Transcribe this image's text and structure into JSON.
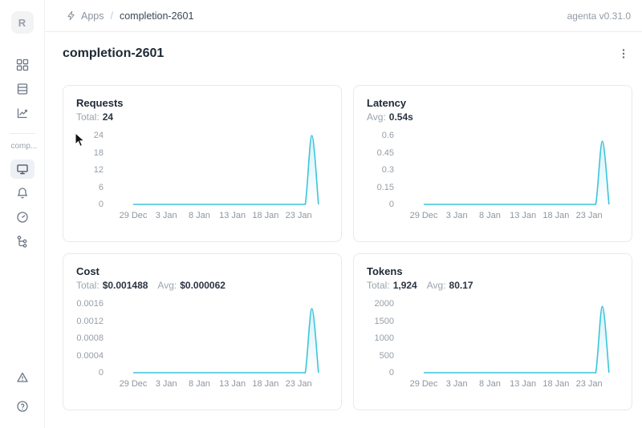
{
  "header": {
    "breadcrumb_app": "Apps",
    "breadcrumb_sep": "/",
    "breadcrumb_current": "completion-2601",
    "version": "agenta v0.31.0"
  },
  "sidebar": {
    "logo_letter": "R",
    "workspace_label": "comp...",
    "nav_icons": [
      "apps-grid-icon",
      "table-icon",
      "chart-trend-icon"
    ],
    "app_icons": [
      "monitor-icon",
      "bell-icon",
      "gauge-icon",
      "trace-tree-icon"
    ],
    "bottom_icons": [
      "alert-triangle-icon",
      "help-circle-icon"
    ],
    "selected_icon": "monitor-icon"
  },
  "page": {
    "title": "completion-2601"
  },
  "theme": {
    "line_color": "#3bc4da",
    "fill_top": "rgba(59,196,218,0.22)",
    "fill_bottom": "rgba(59,196,218,0)"
  },
  "chart_data": [
    {
      "type": "area",
      "title": "Requests",
      "stats": [
        {
          "label": "Total:",
          "value": "24"
        }
      ],
      "y_ticks": [
        "24",
        "18",
        "12",
        "6",
        "0"
      ],
      "ylim": [
        0,
        24
      ],
      "x_ticks": [
        "29 Dec",
        "3 Jan",
        "8 Jan",
        "13 Jan",
        "18 Jan",
        "23 Jan"
      ],
      "grid": false,
      "legend": false,
      "series": [
        {
          "name": "requests",
          "values": [
            0,
            0,
            0,
            0,
            0,
            0,
            0,
            0,
            0,
            0,
            0,
            0,
            0,
            0,
            0,
            0,
            0,
            0,
            0,
            0,
            0,
            0,
            0,
            0,
            0,
            0,
            0,
            24,
            0
          ]
        }
      ],
      "peak_note": "spike of 24 requests on 25 Jan"
    },
    {
      "type": "area",
      "title": "Latency",
      "stats": [
        {
          "label": "Avg:",
          "value": "0.54s"
        }
      ],
      "y_ticks": [
        "0.6",
        "0.45",
        "0.3",
        "0.15",
        "0"
      ],
      "ylim": [
        0,
        0.6
      ],
      "x_ticks": [
        "29 Dec",
        "3 Jan",
        "8 Jan",
        "13 Jan",
        "18 Jan",
        "23 Jan"
      ],
      "grid": false,
      "legend": false,
      "series": [
        {
          "name": "latency_s",
          "values": [
            0,
            0,
            0,
            0,
            0,
            0,
            0,
            0,
            0,
            0,
            0,
            0,
            0,
            0,
            0,
            0,
            0,
            0,
            0,
            0,
            0,
            0,
            0,
            0,
            0,
            0,
            0,
            0.55,
            0
          ]
        }
      ],
      "peak_note": "spike to ~0.55s on 25 Jan"
    },
    {
      "type": "area",
      "title": "Cost",
      "stats": [
        {
          "label": "Total:",
          "value": "$0.001488"
        },
        {
          "label": "Avg:",
          "value": "$0.000062"
        }
      ],
      "y_ticks": [
        "0.0016",
        "0.0012",
        "0.0008",
        "0.0004",
        "0"
      ],
      "ylim": [
        0,
        0.0016
      ],
      "x_ticks": [
        "29 Dec",
        "3 Jan",
        "8 Jan",
        "13 Jan",
        "18 Jan",
        "23 Jan"
      ],
      "grid": false,
      "legend": false,
      "series": [
        {
          "name": "cost_usd",
          "values": [
            0,
            0,
            0,
            0,
            0,
            0,
            0,
            0,
            0,
            0,
            0,
            0,
            0,
            0,
            0,
            0,
            0,
            0,
            0,
            0,
            0,
            0,
            0,
            0,
            0,
            0,
            0,
            0.001488,
            0
          ]
        }
      ],
      "peak_note": "spike to $0.001488 on 25 Jan"
    },
    {
      "type": "area",
      "title": "Tokens",
      "stats": [
        {
          "label": "Total:",
          "value": "1,924"
        },
        {
          "label": "Avg:",
          "value": "80.17"
        }
      ],
      "y_ticks": [
        "2000",
        "1500",
        "1000",
        "500",
        "0"
      ],
      "ylim": [
        0,
        2000
      ],
      "x_ticks": [
        "29 Dec",
        "3 Jan",
        "8 Jan",
        "13 Jan",
        "18 Jan",
        "23 Jan"
      ],
      "grid": false,
      "legend": false,
      "series": [
        {
          "name": "tokens",
          "values": [
            0,
            0,
            0,
            0,
            0,
            0,
            0,
            0,
            0,
            0,
            0,
            0,
            0,
            0,
            0,
            0,
            0,
            0,
            0,
            0,
            0,
            0,
            0,
            0,
            0,
            0,
            0,
            1924,
            0
          ]
        }
      ],
      "peak_note": "spike to 1,924 tokens on 25 Jan"
    }
  ]
}
